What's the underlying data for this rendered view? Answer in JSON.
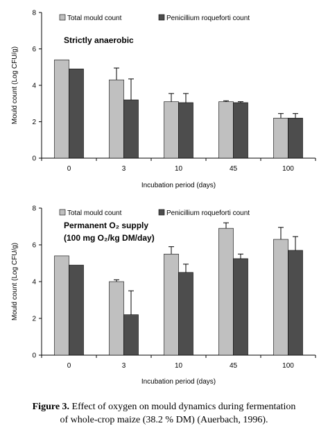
{
  "chart_data": [
    {
      "type": "bar",
      "categories": [
        "0",
        "3",
        "10",
        "45",
        "100"
      ],
      "series": [
        {
          "name": "Total mould count",
          "values": [
            5.4,
            4.3,
            3.1,
            3.1,
            2.2
          ],
          "errors": [
            0,
            0.65,
            0.45,
            0.05,
            0.25
          ]
        },
        {
          "name": "Penicillium roqueforti count",
          "values": [
            4.9,
            3.2,
            3.05,
            3.05,
            2.2
          ],
          "errors": [
            0,
            1.15,
            0.5,
            0.05,
            0.25
          ]
        }
      ],
      "colors": [
        "#c0c0c0",
        "#4d4d4d"
      ],
      "annotation": [
        "Strictly anaerobic"
      ],
      "xlabel": "Incubation period (days)",
      "ylabel": "Mould count (Log CFU/g)",
      "ylim": [
        0,
        8
      ],
      "yticks": [
        "0",
        "2",
        "4",
        "6",
        "8"
      ],
      "grid": false,
      "legend": "top"
    },
    {
      "type": "bar",
      "categories": [
        "0",
        "3",
        "10",
        "45",
        "100"
      ],
      "series": [
        {
          "name": "Total mould count",
          "values": [
            5.4,
            4.0,
            5.5,
            6.9,
            6.3
          ],
          "errors": [
            0,
            0.1,
            0.4,
            0.3,
            0.65
          ]
        },
        {
          "name": "Penicillium roqueforti count",
          "values": [
            4.9,
            2.2,
            4.5,
            5.25,
            5.7
          ],
          "errors": [
            0,
            1.3,
            0.45,
            0.25,
            0.75
          ]
        }
      ],
      "colors": [
        "#c0c0c0",
        "#4d4d4d"
      ],
      "annotation": [
        "Permanent O₂ supply",
        "(100 mg O₂/kg DM/day)"
      ],
      "xlabel": "Incubation period (days)",
      "ylabel": "Mould count (Log CFU/g)",
      "ylim": [
        0,
        8
      ],
      "yticks": [
        "0",
        "2",
        "4",
        "6",
        "8"
      ],
      "grid": false,
      "legend": "top"
    }
  ],
  "caption": {
    "label": "Figure 3.",
    "line1": " Effect of oxygen on mould dynamics during fermentation",
    "line2": "of whole-crop maize (38.2 % DM) (Auerbach, 1996)."
  }
}
